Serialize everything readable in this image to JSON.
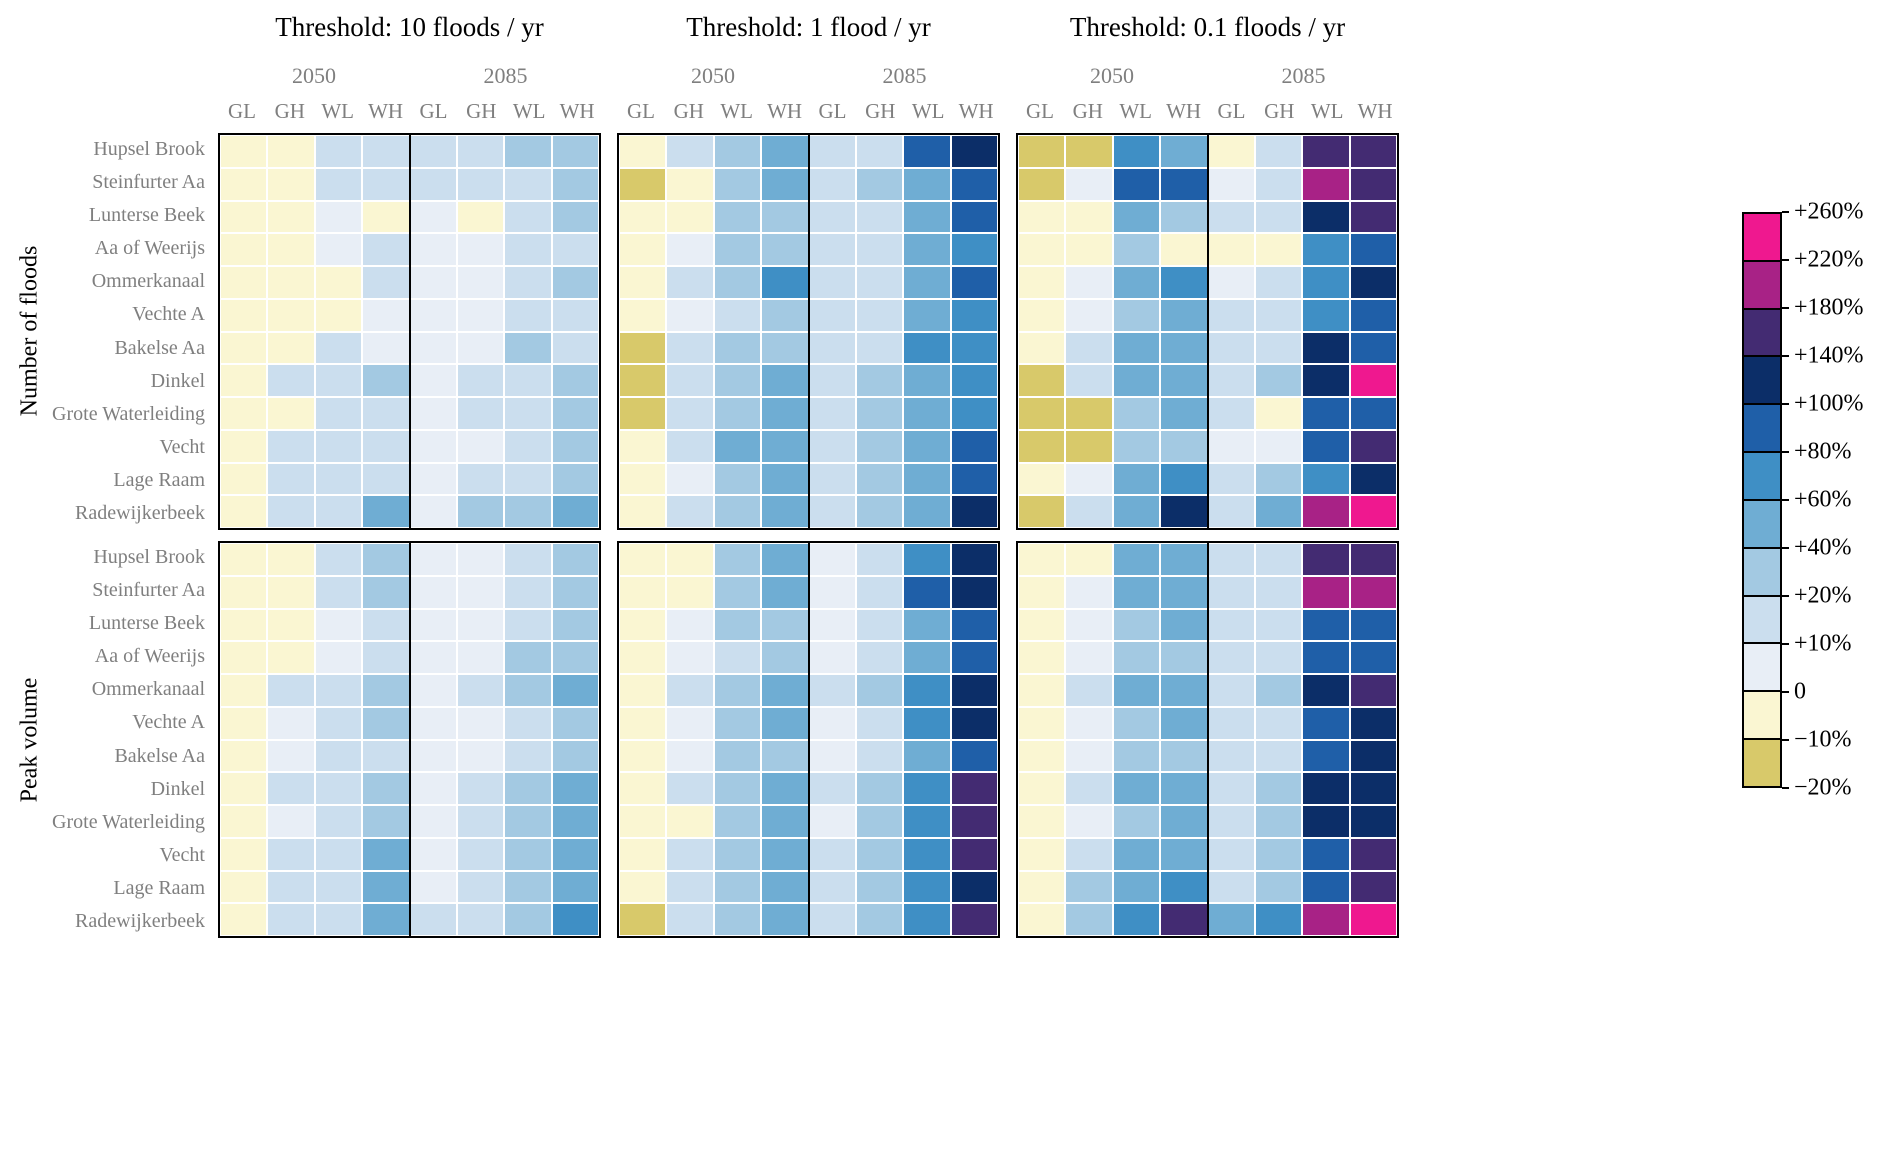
{
  "chart_data": {
    "type": "heatmap",
    "col_titles": [
      "Threshold: 10 floods / yr",
      "Threshold: 1 flood / yr",
      "Threshold: 0.1 floods / yr"
    ],
    "row_titles": [
      "Number of floods",
      "Peak volume"
    ],
    "year_groups": [
      "2050",
      "2085"
    ],
    "scenarios": [
      "GL",
      "GH",
      "WL",
      "WH"
    ],
    "catchments": [
      "Hupsel Brook",
      "Steinfurter Aa",
      "Lunterse Beek",
      "Aa of Weerijs",
      "Ommerkanaal",
      "Vechte A",
      "Bakelse Aa",
      "Dinkel",
      "Grote Waterleiding",
      "Vecht",
      "Lage Raam",
      "Radewijkerbeek"
    ],
    "colorbar": {
      "labels_top_to_bottom": [
        "+260%",
        "+220%",
        "+180%",
        "+140%",
        "+100%",
        "+80%",
        "+60%",
        "+40%",
        "+20%",
        "+10%",
        "0",
        "−10%",
        "−20%"
      ],
      "bucket_ranges_bottom_to_top": [
        "−20..−10%",
        "−10..0%",
        "0..+10%",
        "+10..+20%",
        "+20..+40%",
        "+40..+60%",
        "+60..+80%",
        "+80..+100%",
        "+100..+140%",
        "+140..+180%",
        "+180..+220%",
        "+220..+260%"
      ]
    },
    "bucket_colors": [
      "#d8c96a",
      "#faf6d2",
      "#e8eef6",
      "#cbdeee",
      "#a3c9e2",
      "#6fadd3",
      "#3f8fc5",
      "#1f5fa8",
      "#0c2e68",
      "#432b72",
      "#a82286",
      "#ef188f"
    ],
    "panels": [
      {
        "metric": "Number of floods",
        "threshold": "10 floods / yr",
        "cells": [
          [
            1,
            1,
            3,
            3,
            3,
            3,
            4,
            4
          ],
          [
            1,
            1,
            3,
            3,
            3,
            3,
            3,
            4
          ],
          [
            1,
            1,
            2,
            1,
            2,
            1,
            3,
            4
          ],
          [
            1,
            1,
            2,
            3,
            2,
            2,
            3,
            3
          ],
          [
            1,
            1,
            1,
            3,
            2,
            2,
            3,
            4
          ],
          [
            1,
            1,
            1,
            2,
            2,
            2,
            3,
            3
          ],
          [
            1,
            1,
            3,
            2,
            2,
            2,
            4,
            3
          ],
          [
            1,
            3,
            3,
            4,
            2,
            3,
            3,
            4
          ],
          [
            1,
            1,
            3,
            3,
            2,
            3,
            3,
            4
          ],
          [
            1,
            3,
            3,
            3,
            2,
            2,
            3,
            4
          ],
          [
            1,
            3,
            3,
            3,
            2,
            3,
            3,
            4
          ],
          [
            1,
            3,
            3,
            5,
            2,
            4,
            4,
            5
          ]
        ]
      },
      {
        "metric": "Number of floods",
        "threshold": "1 flood / yr",
        "cells": [
          [
            1,
            3,
            4,
            5,
            3,
            3,
            7,
            8
          ],
          [
            0,
            1,
            4,
            5,
            3,
            4,
            5,
            7
          ],
          [
            1,
            1,
            4,
            4,
            3,
            3,
            5,
            7
          ],
          [
            1,
            2,
            4,
            4,
            3,
            3,
            5,
            6
          ],
          [
            1,
            3,
            4,
            6,
            3,
            3,
            5,
            7
          ],
          [
            1,
            2,
            3,
            4,
            3,
            3,
            5,
            6
          ],
          [
            0,
            3,
            4,
            4,
            3,
            3,
            6,
            6
          ],
          [
            0,
            3,
            4,
            5,
            3,
            4,
            5,
            6
          ],
          [
            0,
            3,
            4,
            5,
            3,
            4,
            5,
            6
          ],
          [
            1,
            3,
            5,
            5,
            3,
            4,
            5,
            7
          ],
          [
            1,
            2,
            4,
            5,
            3,
            4,
            5,
            7
          ],
          [
            1,
            3,
            4,
            5,
            3,
            4,
            5,
            8
          ]
        ]
      },
      {
        "metric": "Number of floods",
        "threshold": "0.1 floods / yr",
        "cells": [
          [
            0,
            0,
            6,
            5,
            1,
            3,
            9,
            9
          ],
          [
            0,
            2,
            7,
            7,
            2,
            3,
            10,
            9
          ],
          [
            1,
            1,
            5,
            4,
            3,
            3,
            8,
            9
          ],
          [
            1,
            1,
            4,
            1,
            1,
            1,
            6,
            7
          ],
          [
            1,
            2,
            5,
            6,
            2,
            3,
            6,
            8
          ],
          [
            1,
            2,
            4,
            5,
            3,
            3,
            6,
            7
          ],
          [
            1,
            3,
            5,
            5,
            3,
            3,
            8,
            7
          ],
          [
            0,
            3,
            5,
            5,
            3,
            4,
            8,
            11
          ],
          [
            0,
            0,
            4,
            5,
            3,
            1,
            7,
            7
          ],
          [
            0,
            0,
            4,
            4,
            2,
            2,
            7,
            9
          ],
          [
            1,
            2,
            5,
            6,
            3,
            4,
            6,
            8
          ],
          [
            0,
            3,
            5,
            8,
            3,
            5,
            10,
            11
          ]
        ]
      },
      {
        "metric": "Peak volume",
        "threshold": "10 floods / yr",
        "cells": [
          [
            1,
            1,
            3,
            4,
            2,
            2,
            3,
            4
          ],
          [
            1,
            1,
            3,
            4,
            2,
            2,
            3,
            4
          ],
          [
            1,
            1,
            2,
            3,
            2,
            2,
            3,
            4
          ],
          [
            1,
            1,
            2,
            3,
            2,
            2,
            4,
            4
          ],
          [
            1,
            3,
            3,
            4,
            2,
            3,
            4,
            5
          ],
          [
            1,
            2,
            3,
            4,
            2,
            2,
            3,
            4
          ],
          [
            1,
            2,
            3,
            3,
            2,
            2,
            3,
            4
          ],
          [
            1,
            3,
            3,
            4,
            2,
            3,
            4,
            5
          ],
          [
            1,
            2,
            3,
            4,
            2,
            3,
            4,
            5
          ],
          [
            1,
            3,
            3,
            5,
            2,
            3,
            4,
            5
          ],
          [
            1,
            3,
            3,
            5,
            2,
            3,
            4,
            5
          ],
          [
            1,
            3,
            3,
            5,
            3,
            3,
            4,
            6
          ]
        ]
      },
      {
        "metric": "Peak volume",
        "threshold": "1 flood / yr",
        "cells": [
          [
            1,
            1,
            4,
            5,
            2,
            3,
            6,
            8
          ],
          [
            1,
            1,
            4,
            5,
            2,
            3,
            7,
            8
          ],
          [
            1,
            2,
            4,
            4,
            2,
            3,
            5,
            7
          ],
          [
            1,
            2,
            3,
            4,
            2,
            3,
            5,
            7
          ],
          [
            1,
            3,
            4,
            5,
            3,
            4,
            6,
            8
          ],
          [
            1,
            2,
            4,
            5,
            2,
            3,
            6,
            8
          ],
          [
            1,
            2,
            4,
            4,
            2,
            3,
            5,
            7
          ],
          [
            1,
            3,
            4,
            5,
            3,
            4,
            6,
            9
          ],
          [
            1,
            1,
            4,
            5,
            2,
            4,
            6,
            9
          ],
          [
            1,
            3,
            4,
            5,
            3,
            4,
            6,
            9
          ],
          [
            1,
            3,
            4,
            5,
            3,
            4,
            6,
            8
          ],
          [
            0,
            3,
            4,
            5,
            3,
            4,
            6,
            9
          ]
        ]
      },
      {
        "metric": "Peak volume",
        "threshold": "0.1 floods / yr",
        "cells": [
          [
            1,
            1,
            5,
            5,
            3,
            3,
            9,
            9
          ],
          [
            1,
            2,
            5,
            5,
            3,
            3,
            10,
            10
          ],
          [
            1,
            2,
            4,
            5,
            3,
            3,
            7,
            7
          ],
          [
            1,
            2,
            4,
            4,
            3,
            3,
            7,
            7
          ],
          [
            1,
            3,
            5,
            5,
            3,
            4,
            8,
            9
          ],
          [
            1,
            2,
            4,
            5,
            3,
            3,
            7,
            8
          ],
          [
            1,
            2,
            4,
            4,
            3,
            3,
            7,
            8
          ],
          [
            1,
            3,
            5,
            5,
            3,
            4,
            8,
            8
          ],
          [
            1,
            2,
            4,
            5,
            3,
            4,
            8,
            8
          ],
          [
            1,
            3,
            5,
            5,
            3,
            4,
            7,
            9
          ],
          [
            1,
            4,
            5,
            6,
            3,
            4,
            7,
            9
          ],
          [
            1,
            4,
            6,
            9,
            5,
            6,
            10,
            11
          ]
        ]
      }
    ]
  }
}
